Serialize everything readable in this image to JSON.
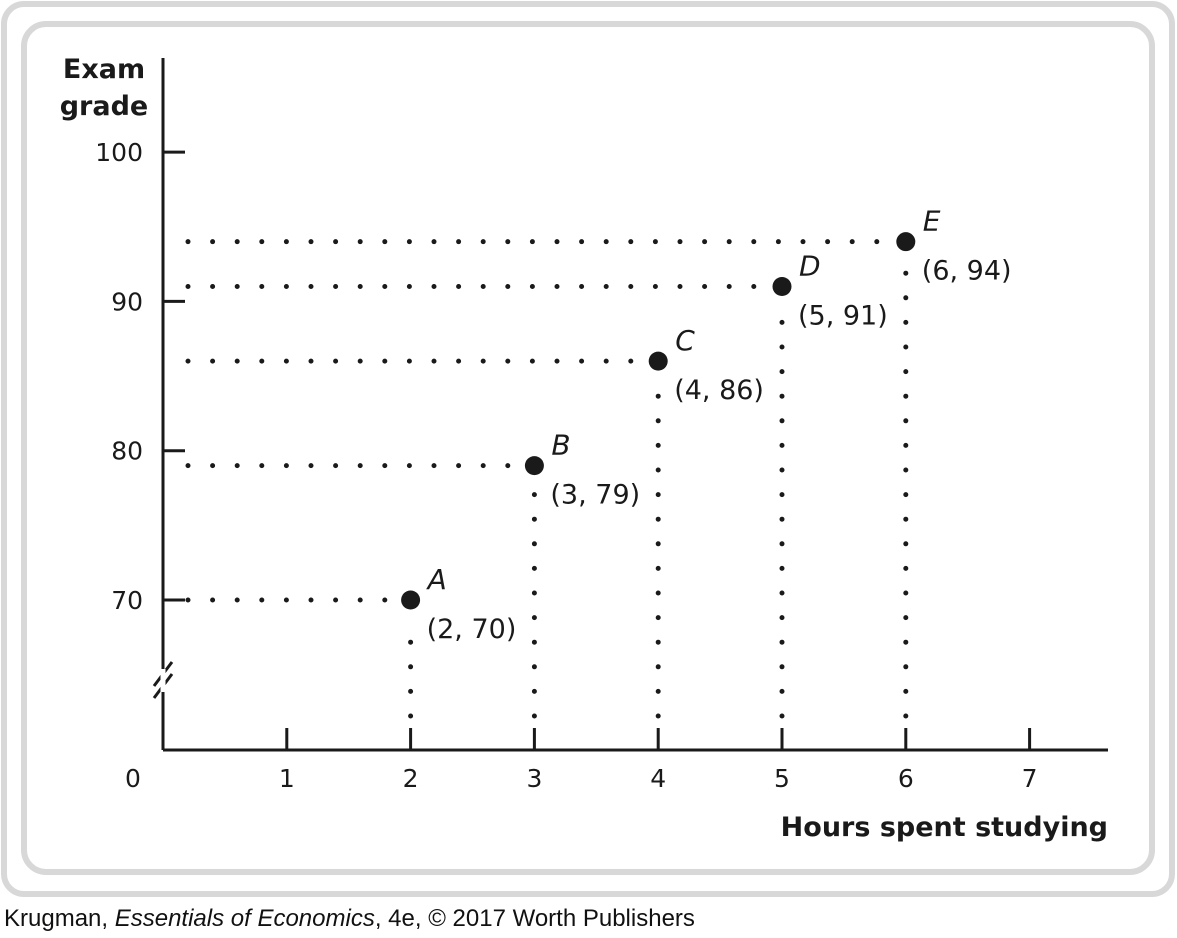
{
  "chart_data": {
    "type": "scatter",
    "ylabel_lines": [
      "Exam",
      "grade"
    ],
    "xlabel": "Hours spent studying",
    "origin_label": "0",
    "xlim": [
      0,
      7.6
    ],
    "ylim": [
      64,
      103
    ],
    "y_axis_break": true,
    "x_ticks": [
      1,
      2,
      3,
      4,
      5,
      6,
      7
    ],
    "x_tick_labels": [
      "1",
      "2",
      "3",
      "4",
      "5",
      "6",
      "7"
    ],
    "y_ticks": [
      70,
      80,
      90,
      100
    ],
    "y_tick_labels": [
      "70",
      "80",
      "90",
      "100"
    ],
    "points": [
      {
        "name": "A",
        "x": 2,
        "y": 70,
        "label": "(2, 70)"
      },
      {
        "name": "B",
        "x": 3,
        "y": 79,
        "label": "(3, 79)"
      },
      {
        "name": "C",
        "x": 4,
        "y": 86,
        "label": "(4, 86)"
      },
      {
        "name": "D",
        "x": 5,
        "y": 91,
        "label": "(5, 91)"
      },
      {
        "name": "E",
        "x": 6,
        "y": 94,
        "label": "(6, 94)"
      }
    ],
    "dotted_guides": true,
    "colors": {
      "frame": "#d8d8d8",
      "ink": "#1a1a1a"
    }
  },
  "credit": {
    "author": "Krugman, ",
    "book": "Essentials of Economics",
    "rest": ", 4e, © 2017 Worth Publishers"
  }
}
